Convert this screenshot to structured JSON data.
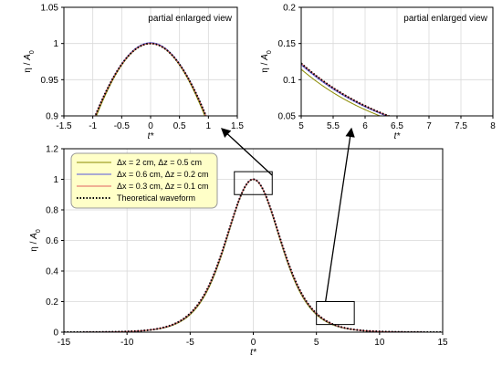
{
  "chart_data": [
    {
      "id": "inset_left",
      "type": "line",
      "annotation": "partial enlarged view",
      "xlabel": "t*",
      "ylabel": "η / A0",
      "xlim": [
        -1.5,
        1.5
      ],
      "ylim": [
        0.9,
        1.05
      ],
      "xticks": [
        -1.5,
        -1,
        -0.5,
        0,
        0.5,
        1,
        1.5
      ],
      "yticks": [
        0.9,
        0.95,
        1,
        1.05
      ],
      "xtick_labels": [
        "-1.5",
        "-1",
        "-0.5",
        "0",
        "0.5",
        "1",
        "1.5"
      ],
      "ytick_labels": [
        "0.9",
        "0.95",
        "1",
        "1.05"
      ],
      "grid": true
    },
    {
      "id": "inset_right",
      "type": "line",
      "annotation": "partial enlarged view",
      "xlabel": "t*",
      "ylabel": "η / A0",
      "xlim": [
        5,
        8
      ],
      "ylim": [
        0.05,
        0.2
      ],
      "xticks": [
        5,
        5.5,
        6,
        6.5,
        7,
        7.5,
        8
      ],
      "yticks": [
        0.05,
        0.1,
        0.15,
        0.2
      ],
      "xtick_labels": [
        "5",
        "5.5",
        "6",
        "6.5",
        "7",
        "7.5",
        "8"
      ],
      "ytick_labels": [
        "0.05",
        "0.1",
        "0.15",
        "0.2"
      ],
      "grid": true
    },
    {
      "id": "main",
      "type": "line",
      "xlabel": "t*",
      "ylabel": "η / A0",
      "xlim": [
        -15,
        15
      ],
      "ylim": [
        0,
        1.2
      ],
      "xticks": [
        -15,
        -10,
        -5,
        0,
        5,
        10,
        15
      ],
      "yticks": [
        0,
        0.2,
        0.4,
        0.6,
        0.8,
        1,
        1.2
      ],
      "xtick_labels": [
        "-15",
        "-10",
        "-5",
        "0",
        "5",
        "10",
        "15"
      ],
      "ytick_labels": [
        "0",
        "0.2",
        "0.4",
        "0.6",
        "0.8",
        "1",
        "1.2"
      ],
      "grid": true,
      "legend_position": "top-left",
      "zoom_boxes": [
        {
          "x": [
            -1.5,
            1.5
          ],
          "y": [
            0.9,
            1.05
          ],
          "target": "inset_left"
        },
        {
          "x": [
            5,
            8
          ],
          "y": [
            0.05,
            0.2
          ],
          "target": "inset_right"
        }
      ]
    }
  ],
  "series": [
    {
      "name": "Δx = 2 cm, Δz = 0.5 cm",
      "color": "#8a8a00",
      "style": "solid",
      "width_param": 3.72,
      "amp": 1.0
    },
    {
      "name": "Δx = 0.6 cm, Δz = 0.2 cm",
      "color": "#5555dd",
      "style": "solid",
      "width_param": 3.78,
      "amp": 1.001
    },
    {
      "name": "Δx = 0.3 cm, Δz = 0.1 cm",
      "color": "#e06060",
      "style": "solid",
      "width_param": 3.8,
      "amp": 1.0
    },
    {
      "name": "Theoretical waveform",
      "color": "#000000",
      "style": "dotted",
      "width_param": 3.8,
      "amp": 1.0
    }
  ],
  "colors": {
    "legend_bg": "#ffffc8",
    "legend_border": "#999999",
    "grid": "#d9d9d9"
  }
}
